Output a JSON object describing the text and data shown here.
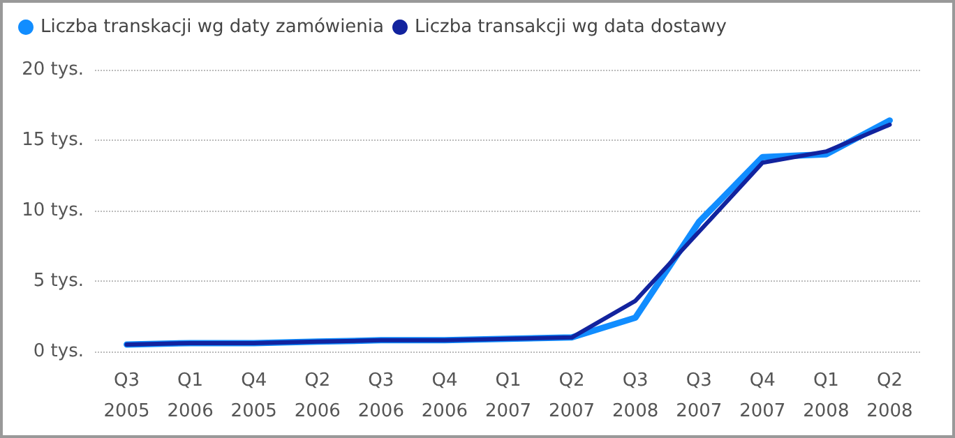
{
  "chart_data": {
    "type": "line",
    "categories": [
      "Q3\n2005",
      "Q1\n2006",
      "Q4\n2005",
      "Q2\n2006",
      "Q3\n2006",
      "Q4\n2006",
      "Q1\n2007",
      "Q2\n2007",
      "Q3\n2008",
      "Q3\n2007",
      "Q4\n2007",
      "Q1\n2008",
      "Q2\n2008"
    ],
    "series": [
      {
        "name": "Liczba transkacji wg daty zamówienia",
        "color": "#118dff",
        "values": [
          0.5,
          0.6,
          0.6,
          0.7,
          0.8,
          0.8,
          0.9,
          1.0,
          2.4,
          9.2,
          13.8,
          14.0,
          16.4
        ]
      },
      {
        "name": "Liczba transakcji wg data dostawy",
        "color": "#12239e",
        "values": [
          0.5,
          0.6,
          0.6,
          0.7,
          0.8,
          0.8,
          0.9,
          1.0,
          3.6,
          8.5,
          13.4,
          14.2,
          16.1
        ]
      }
    ],
    "ylim": [
      0,
      20
    ],
    "yticks": [
      {
        "value": 0,
        "label": "0 tys."
      },
      {
        "value": 5,
        "label": "5 tys."
      },
      {
        "value": 10,
        "label": "10 tys."
      },
      {
        "value": 15,
        "label": "15 tys."
      },
      {
        "value": 20,
        "label": "20 tys."
      }
    ],
    "grid": "y",
    "legend": "top left",
    "marker": "none",
    "line_style": "solid"
  }
}
